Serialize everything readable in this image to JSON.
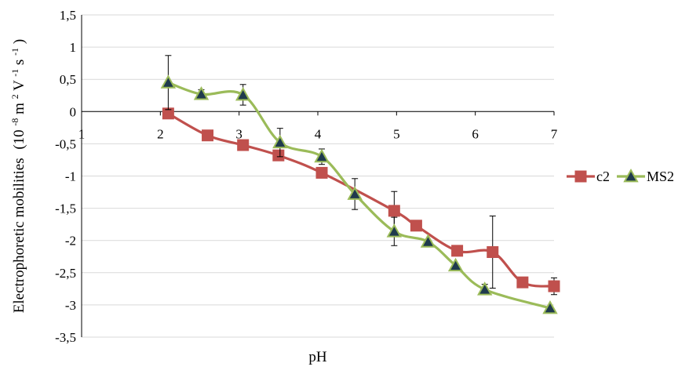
{
  "chart_data": {
    "type": "line",
    "title": "",
    "xlabel": "pH",
    "ylabel": "Electrophoretic mobilities",
    "ylabel_unit": [
      "(10",
      "-8",
      "m",
      "2",
      "V",
      "-1",
      "s",
      "-1",
      ")"
    ],
    "xlim": [
      1,
      7
    ],
    "ylim": [
      -3.5,
      1.5
    ],
    "x_ticks": [
      "1",
      "2",
      "3",
      "4",
      "5",
      "6",
      "7"
    ],
    "y_ticks": [
      "1,5",
      "1",
      "0,5",
      "0",
      "-0,5",
      "-1",
      "-1,5",
      "-2",
      "-2,5",
      "-3",
      "-3,5"
    ],
    "grid": "horizontal",
    "legend": "right",
    "series": [
      {
        "name": "c2",
        "color": "#c0504d",
        "marker": "square",
        "x": [
          2.1,
          2.6,
          3.05,
          3.5,
          4.05,
          4.97,
          5.25,
          5.77,
          6.22,
          6.6,
          7.0
        ],
        "y": [
          -0.03,
          -0.37,
          -0.52,
          -0.68,
          -0.95,
          -1.54,
          -1.77,
          -2.16,
          -2.18,
          -2.65,
          -2.71
        ],
        "err": [
          null,
          null,
          null,
          null,
          null,
          0.3,
          null,
          null,
          0.56,
          null,
          0.13
        ]
      },
      {
        "name": "MS2",
        "color": "#9bbb59",
        "marker": "triangle",
        "x": [
          2.1,
          2.52,
          3.05,
          3.52,
          4.05,
          4.47,
          4.97,
          5.4,
          5.75,
          6.12,
          6.95
        ],
        "y": [
          0.45,
          0.27,
          0.26,
          -0.48,
          -0.7,
          -1.28,
          -1.86,
          -2.02,
          -2.39,
          -2.76,
          -3.05
        ],
        "err": [
          0.42,
          0.07,
          0.16,
          0.22,
          0.12,
          0.24,
          0.22,
          null,
          null,
          0.08,
          null
        ]
      }
    ]
  }
}
